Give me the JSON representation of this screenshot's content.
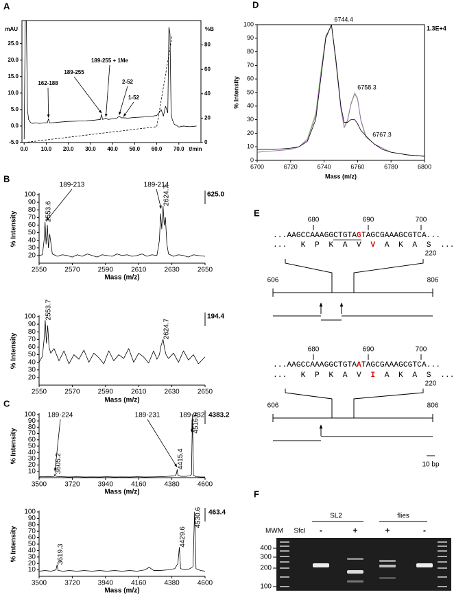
{
  "chart_data": [
    {
      "type": "line",
      "panel": "A",
      "y_label": "mAU",
      "y2_label": "%B",
      "x_label": "t/min",
      "xlim": [
        -1,
        80
      ],
      "xticks": [
        {
          "value": 0,
          "label": "0.0"
        },
        {
          "value": 10,
          "label": "10.0"
        },
        {
          "value": 20,
          "label": "20.0"
        },
        {
          "value": 30,
          "label": "30.0"
        },
        {
          "value": 40,
          "label": "40.0"
        },
        {
          "value": 50,
          "label": "50.0"
        },
        {
          "value": 60,
          "label": "60.0"
        },
        {
          "value": 70,
          "label": "70.0"
        }
      ],
      "ylim": [
        -5,
        32
      ],
      "yticks": [
        {
          "value": 25,
          "label": "25.0"
        },
        {
          "value": 20,
          "label": "20.0"
        },
        {
          "value": 15,
          "label": "15.0"
        },
        {
          "value": 10,
          "label": "10.0"
        },
        {
          "value": 5,
          "label": "5.0"
        },
        {
          "value": 0,
          "label": "0.0"
        },
        {
          "value": -5,
          "label": "-5.0"
        }
      ],
      "y2lim": [
        0,
        100
      ],
      "y2ticks": [
        0,
        20,
        40,
        60,
        80
      ],
      "x": [
        0,
        0.5,
        1,
        1.5,
        2,
        3,
        4,
        5,
        7,
        9,
        10.5,
        11,
        11.5,
        13,
        16,
        20,
        24,
        28,
        32,
        34.5,
        35,
        35.5,
        37,
        38,
        40,
        42,
        43,
        44,
        45,
        47,
        50,
        55,
        58,
        60,
        61,
        62,
        63,
        64,
        65,
        65.5,
        66,
        66.5,
        67,
        68,
        69,
        70,
        72,
        75,
        78
      ],
      "series": [
        {
          "color": "#000000",
          "values": [
            -4,
            32,
            32,
            5,
            2,
            1,
            0.8,
            1,
            0.8,
            1,
            1,
            2.2,
            1,
            1,
            1.2,
            1.4,
            1.5,
            1.6,
            1.8,
            2,
            3.5,
            2,
            2.4,
            2,
            2.2,
            2.4,
            3,
            2.5,
            2.5,
            2.4,
            2.6,
            2.8,
            3,
            3.2,
            4,
            5,
            3,
            6,
            4,
            30,
            28,
            4,
            2,
            0.5,
            0.2,
            -0.3,
            0,
            -0.2,
            0
          ]
        },
        {
          "color": "#000000",
          "axis": "y2",
          "line_style": "dashed",
          "x": [
            0,
            60,
            67
          ],
          "values": [
            0,
            13,
            88
          ]
        }
      ],
      "annotations": [
        {
          "text": "162-188",
          "x": 11,
          "y": 2.2
        },
        {
          "text": "189-255",
          "x": 35,
          "y": 3.5
        },
        {
          "text": "189-255 + 1Me",
          "x": 37,
          "y": 2.4
        },
        {
          "text": "2-52",
          "x": 43,
          "y": 3
        },
        {
          "text": "1-52",
          "x": 45,
          "y": 2.5
        }
      ]
    },
    {
      "type": "line",
      "panel": "B",
      "y_label": "% Intensity",
      "x_label": "Mass (m/z)",
      "max_label": "625.0",
      "xlim": [
        2550,
        2650
      ],
      "xticks": [
        2550,
        2570,
        2590,
        2610,
        2630,
        2650
      ],
      "ylim": [
        10,
        100
      ],
      "yticks": [
        20,
        30,
        40,
        50,
        60,
        70,
        80,
        90,
        100
      ],
      "x": [
        2550,
        2552,
        2553,
        2553.6,
        2554.2,
        2555,
        2555.6,
        2556.4,
        2558,
        2561,
        2564,
        2567,
        2570,
        2573,
        2576,
        2579,
        2582,
        2585,
        2588,
        2591,
        2594,
        2597,
        2600,
        2603,
        2606,
        2609,
        2612,
        2615,
        2618,
        2621,
        2622.5,
        2623.2,
        2623.9,
        2624.7,
        2625.4,
        2626.1,
        2627,
        2628,
        2631,
        2634,
        2637,
        2640,
        2643,
        2646,
        2650
      ],
      "series": [
        {
          "color": "#000000",
          "values": [
            20,
            21,
            40,
            64,
            35,
            60,
            30,
            48,
            22,
            19,
            21,
            20,
            18,
            21,
            19,
            22,
            20,
            18,
            21,
            20,
            19,
            22,
            20,
            21,
            19,
            20,
            22,
            19,
            21,
            20,
            40,
            75,
            55,
            85,
            60,
            70,
            35,
            22,
            19,
            21,
            20,
            18,
            21,
            20,
            19
          ]
        }
      ],
      "peak_labels": [
        {
          "x": 2553.6,
          "y": 64
        },
        {
          "x": 2624.7,
          "y": 85
        }
      ],
      "annotations": [
        {
          "text": "189-213",
          "x": 2554.5,
          "y": 64
        },
        {
          "text": "189-214",
          "x": 2623.5,
          "y": 80
        }
      ]
    },
    {
      "type": "line",
      "y_label": "% Intensity",
      "x_label": "Mass (m/z)",
      "max_label": "194.4",
      "xlim": [
        2550,
        2650
      ],
      "xticks": [
        2550,
        2570,
        2590,
        2610,
        2630,
        2650
      ],
      "ylim": [
        10,
        100
      ],
      "yticks": [
        20,
        30,
        40,
        50,
        60,
        70,
        80,
        90,
        100
      ],
      "x": [
        2550,
        2552,
        2553,
        2553.7,
        2554.4,
        2555.2,
        2556,
        2557,
        2559,
        2562,
        2565,
        2568,
        2571,
        2574,
        2577,
        2580,
        2583,
        2586,
        2589,
        2592,
        2595,
        2598,
        2601,
        2604,
        2607,
        2610,
        2613,
        2616,
        2619,
        2621,
        2622.5,
        2623.5,
        2624.7,
        2625.6,
        2626.5,
        2628,
        2631,
        2634,
        2637,
        2640,
        2643,
        2646,
        2650
      ],
      "series": [
        {
          "color": "#000000",
          "values": [
            40,
            48,
            70,
            95,
            65,
            88,
            60,
            52,
            58,
            42,
            55,
            38,
            50,
            44,
            56,
            40,
            52,
            46,
            38,
            55,
            42,
            50,
            45,
            58,
            40,
            52,
            47,
            39,
            55,
            44,
            50,
            62,
            70,
            58,
            50,
            45,
            52,
            40,
            55,
            43,
            50,
            38,
            47
          ]
        }
      ],
      "peak_labels": [
        {
          "x": 2553.7,
          "y": 95
        },
        {
          "x": 2624.7,
          "y": 70
        }
      ]
    },
    {
      "type": "line",
      "panel": "C",
      "y_label": "% Intensity",
      "x_label": "Mass (m/z)",
      "max_label": "4383.2",
      "xlim": [
        3500,
        4600
      ],
      "xticks": [
        3500,
        3720,
        3940,
        4160,
        4380,
        4600
      ],
      "ylim": [
        0,
        100
      ],
      "yticks": [
        10,
        20,
        30,
        40,
        50,
        60,
        70,
        80,
        90,
        100
      ],
      "x": [
        3500,
        3520,
        3560,
        3600,
        3605.2,
        3612,
        3650,
        3700,
        3750,
        3800,
        3850,
        3900,
        3950,
        4000,
        4050,
        4100,
        4150,
        4200,
        4250,
        4300,
        4350,
        4380,
        4400,
        4410,
        4415.4,
        4420,
        4440,
        4470,
        4500,
        4510,
        4516.6,
        4523,
        4540,
        4570,
        4600
      ],
      "series": [
        {
          "color": "#000000",
          "values": [
            1,
            2,
            1.5,
            2,
            6,
            2,
            1.5,
            1,
            1.5,
            1,
            1.2,
            1,
            1.5,
            1,
            1.2,
            1,
            1.5,
            1,
            1.2,
            1.5,
            2,
            2.5,
            3,
            6,
            13,
            4,
            2,
            2,
            3,
            5,
            100,
            4,
            1.5,
            1,
            1
          ]
        }
      ],
      "peak_labels": [
        {
          "x": 3605.2,
          "y": 6
        },
        {
          "x": 4415.4,
          "y": 13
        },
        {
          "x": 4516.6,
          "y": 70
        }
      ],
      "annotations": [
        {
          "text": "189-224",
          "x": 3605.2,
          "y": 8
        },
        {
          "text": "189-231",
          "x": 4413,
          "y": 15
        },
        {
          "text": "189-232",
          "x": 4512,
          "y": 70
        }
      ]
    },
    {
      "type": "line",
      "y_label": "% Intensity",
      "x_label": "Mass (m/z)",
      "max_label": "463.4",
      "xlim": [
        3500,
        4600
      ],
      "xticks": [
        3500,
        3720,
        3940,
        4160,
        4380,
        4600
      ],
      "ylim": [
        0,
        100
      ],
      "yticks": [
        10,
        20,
        30,
        40,
        50,
        60,
        70,
        80,
        90,
        100
      ],
      "x": [
        3500,
        3540,
        3580,
        3612,
        3619.3,
        3626,
        3660,
        3700,
        3750,
        3800,
        3850,
        3900,
        3950,
        4000,
        4050,
        4100,
        4150,
        4200,
        4230,
        4260,
        4300,
        4350,
        4400,
        4420,
        4429.6,
        4438,
        4470,
        4500,
        4520,
        4530.6,
        4540,
        4570,
        4600
      ],
      "series": [
        {
          "color": "#000000",
          "values": [
            8,
            9,
            8,
            10,
            18,
            9,
            8,
            9,
            8,
            9,
            8,
            9,
            8,
            9,
            8,
            9,
            8,
            10,
            14,
            9,
            9,
            10,
            12,
            20,
            45,
            12,
            10,
            12,
            15,
            100,
            12,
            9,
            8
          ]
        }
      ],
      "peak_labels": [
        {
          "x": 3619.3,
          "y": 18
        },
        {
          "x": 4429.6,
          "y": 45
        },
        {
          "x": 4530.6,
          "y": 75
        }
      ]
    },
    {
      "type": "line",
      "panel": "D",
      "y_label": "% Intensity",
      "x_label": "Mass (m/z)",
      "max_label": "1.3E+4",
      "xlim": [
        6700,
        6800
      ],
      "xticks": [
        6700,
        6720,
        6740,
        6760,
        6780,
        6800
      ],
      "ylim": [
        0,
        100
      ],
      "yticks": [
        0,
        10,
        20,
        30,
        40,
        50,
        60,
        70,
        80,
        90,
        100
      ],
      "x": [
        6700,
        6710,
        6720,
        6725,
        6730,
        6735,
        6738,
        6741,
        6744.4,
        6747,
        6750,
        6752,
        6754,
        6756,
        6758.3,
        6760,
        6762,
        6765,
        6767.3,
        6770,
        6775,
        6780,
        6790,
        6800
      ],
      "series": [
        {
          "color": "#66dd33",
          "values": [
            6,
            7,
            8,
            10,
            16,
            35,
            65,
            92,
            99,
            72,
            38,
            25,
            30,
            42,
            50,
            46,
            30,
            18,
            15,
            12,
            9,
            6,
            4,
            3
          ]
        },
        {
          "color": "#aa55cc",
          "values": [
            6,
            7,
            8,
            10,
            15,
            33,
            63,
            91,
            100,
            73,
            38,
            24,
            29,
            41,
            49,
            45,
            29,
            17,
            15,
            12,
            9,
            6,
            4,
            3
          ]
        },
        {
          "color": "#000000",
          "values": [
            8,
            8,
            9,
            10,
            14,
            30,
            60,
            90,
            100,
            75,
            40,
            28,
            28,
            30,
            30,
            27,
            22,
            18,
            15,
            12,
            8,
            6,
            4,
            3
          ]
        }
      ],
      "peak_labels": [
        {
          "x": 6744.4,
          "y": 100
        },
        {
          "x": 6758.3,
          "y": 50
        },
        {
          "x": 6767.3,
          "y": 15
        }
      ]
    }
  ],
  "diagram": {
    "panel": "E",
    "positions": [
      680,
      690,
      700
    ],
    "variants": [
      {
        "seq_a": "...AAGCCAAAGG",
        "seq_site": "CTGTA",
        "seq_mut": "G",
        "seq_b": "TAGCGAAAGCGTCA...",
        "aa_a": "...   K  P  K  A  V  ",
        "aa_mut": "V",
        "aa_b": "  A  K  A  S  ...",
        "aa_number": 220,
        "start": 606,
        "end": 806
      },
      {
        "seq_a": "...AAGCCAAAGGCTGTA",
        "seq_mut": "A",
        "seq_b": "TAGCGAAAGCGTCA...",
        "aa_a": "...   K  P  K  A  V  ",
        "aa_mut": "I",
        "aa_b": "  A  K  A  S  ...",
        "aa_number": 220,
        "start": 606,
        "end": 806
      }
    ],
    "scale": "10 bp"
  },
  "gel": {
    "panel": "F",
    "groups": [
      "SL2",
      "flies"
    ],
    "ladder": "MWM",
    "enzyme": "SfcI",
    "lanes": [
      "-",
      "+",
      "+",
      "-"
    ],
    "sizes": [
      400,
      300,
      200,
      100
    ]
  }
}
